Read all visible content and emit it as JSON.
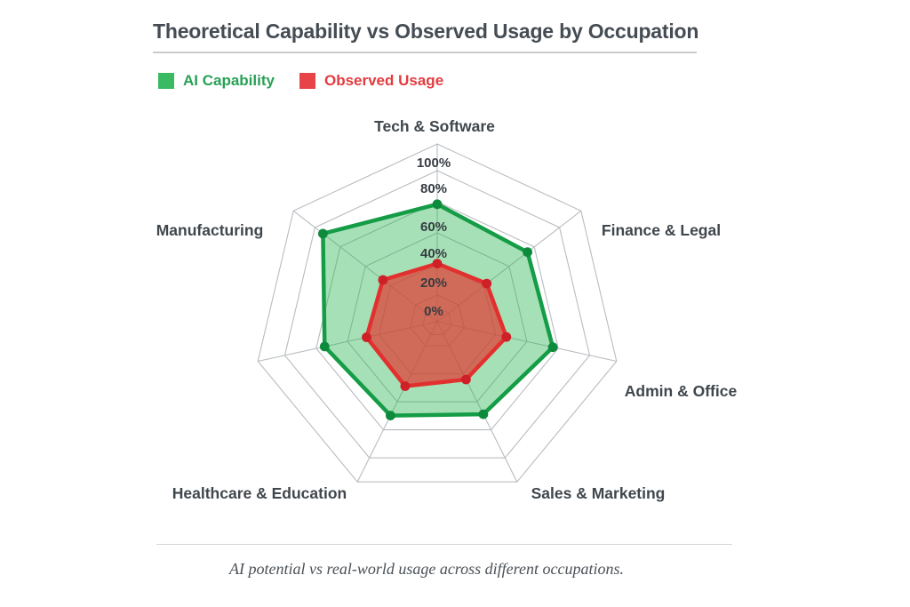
{
  "header": {
    "title": "Theoretical Capability vs Observed Usage by Occupation"
  },
  "legend": {
    "items": [
      {
        "label": "AI Capability",
        "swatch_color": "#3bbb61",
        "label_color": "#28a156"
      },
      {
        "label": "Observed Usage",
        "swatch_color": "#e84448",
        "label_color": "#e23c40"
      }
    ]
  },
  "caption": {
    "text": "AI potential vs real-world usage across different occupations."
  },
  "chart_data": {
    "type": "radar",
    "categories": [
      "Tech & Software",
      "Finance & Legal",
      "Admin & Office",
      "Sales & Marketing",
      "Healthcare & Education",
      "",
      "Manufacturing"
    ],
    "note": "7 spoke axes; the left axis between Healthcare & Education and Manufacturing has no visible label in the image",
    "tick_labels": [
      "100%",
      "80%",
      "60%",
      "40%",
      "20%",
      "0%"
    ],
    "tick_values": [
      100,
      80,
      60,
      40,
      20,
      0
    ],
    "range": [
      0,
      100
    ],
    "grid": true,
    "legend_position": "top-left",
    "series": [
      {
        "name": "AI Capability",
        "values": [
          72,
          68,
          70,
          62,
          63,
          68,
          88
        ],
        "line_color": "#149c46",
        "dot_color": "#0e8a3c",
        "fill_color": "rgba(44,182,82,0.42)"
      },
      {
        "name": "Observed Usage",
        "values": [
          32,
          34,
          39,
          36,
          41,
          40,
          38
        ],
        "line_color": "#e2302f",
        "dot_color": "#cf1f27",
        "fill_color": "rgba(226,57,50,0.70)"
      }
    ]
  }
}
